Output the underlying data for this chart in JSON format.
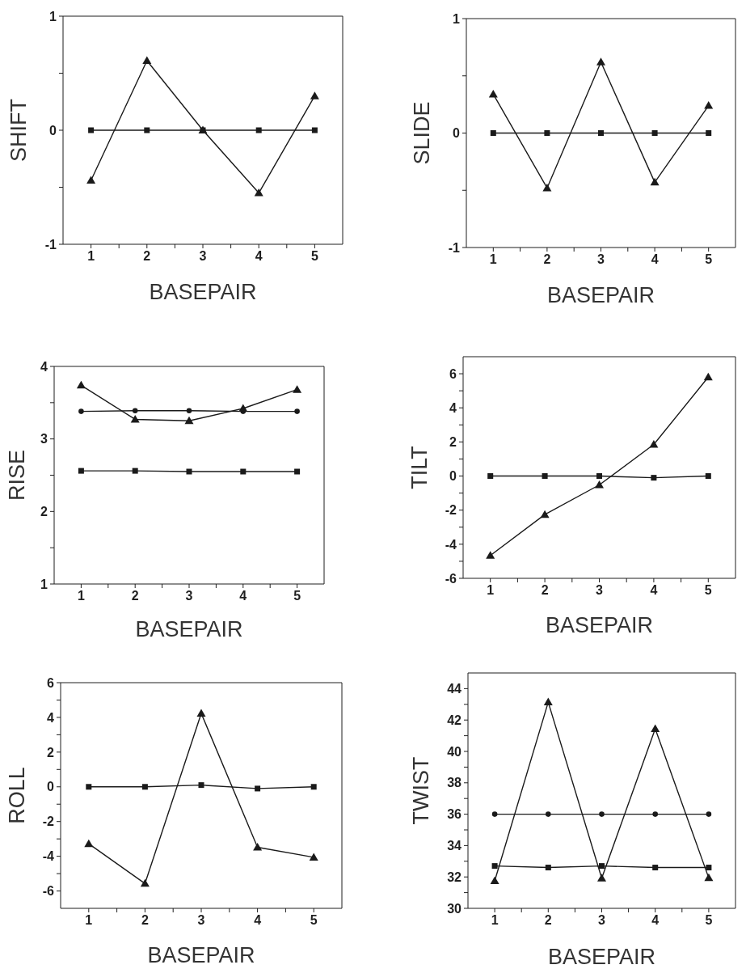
{
  "chart_data": [
    {
      "type": "line",
      "xlabel": "BASEPAIR",
      "ylabel": "SHIFT",
      "x": [
        1,
        2,
        3,
        4,
        5
      ],
      "xlim": [
        0.5,
        5.5
      ],
      "xticks": [
        1,
        {
          "value": 1.5,
          "label": null
        },
        2,
        {
          "value": 2.5,
          "label": null
        },
        3,
        {
          "value": 3.5,
          "label": null
        },
        4,
        {
          "value": 4.5,
          "label": null
        },
        5
      ],
      "ylim": [
        -1,
        1
      ],
      "yticks": [
        -1,
        {
          "value": -0.5,
          "label": null
        },
        0,
        {
          "value": 0.5,
          "label": null
        },
        1
      ],
      "series": [
        {
          "color": "#1a1a1a",
          "marker": "square",
          "values": [
            0,
            0,
            0,
            0,
            0
          ]
        },
        {
          "color": "#1a1a1a",
          "marker": "triangle",
          "values": [
            -0.44,
            0.61,
            0,
            -0.55,
            0.3
          ]
        }
      ]
    },
    {
      "type": "line",
      "xlabel": "BASEPAIR",
      "ylabel": "SLIDE",
      "x": [
        1,
        2,
        3,
        4,
        5
      ],
      "xlim": [
        0.5,
        5.5
      ],
      "xticks": [
        1,
        {
          "value": 1.5,
          "label": null
        },
        2,
        {
          "value": 2.5,
          "label": null
        },
        3,
        {
          "value": 3.5,
          "label": null
        },
        4,
        {
          "value": 4.5,
          "label": null
        },
        5
      ],
      "ylim": [
        -1,
        1
      ],
      "yticks": [
        -1,
        {
          "value": -0.5,
          "label": null
        },
        0,
        {
          "value": 0.5,
          "label": null
        },
        1
      ],
      "series": [
        {
          "color": "#1a1a1a",
          "marker": "square",
          "values": [
            0,
            0,
            0,
            0,
            0
          ]
        },
        {
          "color": "#1a1a1a",
          "marker": "triangle",
          "values": [
            0.34,
            -0.48,
            0.62,
            -0.43,
            0.24
          ]
        }
      ]
    },
    {
      "type": "line",
      "xlabel": "BASEPAIR",
      "ylabel": "RISE",
      "x": [
        1,
        2,
        3,
        4,
        5
      ],
      "xlim": [
        0.5,
        5.5
      ],
      "xticks": [
        1,
        {
          "value": 1.5,
          "label": null
        },
        2,
        {
          "value": 2.5,
          "label": null
        },
        3,
        {
          "value": 3.5,
          "label": null
        },
        4,
        {
          "value": 4.5,
          "label": null
        },
        5
      ],
      "ylim": [
        1,
        4
      ],
      "yticks": [
        1,
        {
          "value": 1.5,
          "label": null
        },
        2,
        {
          "value": 2.5,
          "label": null
        },
        3,
        {
          "value": 3.5,
          "label": null
        },
        4
      ],
      "series": [
        {
          "color": "#1a1a1a",
          "marker": "square",
          "values": [
            2.56,
            2.56,
            2.55,
            2.55,
            2.55
          ]
        },
        {
          "color": "#1a1a1a",
          "marker": "circle",
          "values": [
            3.38,
            3.39,
            3.39,
            3.38,
            3.38
          ]
        },
        {
          "color": "#1a1a1a",
          "marker": "triangle",
          "values": [
            3.74,
            3.27,
            3.25,
            3.42,
            3.68
          ]
        }
      ]
    },
    {
      "type": "line",
      "xlabel": "BASEPAIR",
      "ylabel": "TILT",
      "x": [
        1,
        2,
        3,
        4,
        5
      ],
      "xlim": [
        0.5,
        5.5
      ],
      "xticks": [
        1,
        {
          "value": 1.5,
          "label": null
        },
        2,
        {
          "value": 2.5,
          "label": null
        },
        3,
        {
          "value": 3.5,
          "label": null
        },
        4,
        {
          "value": 4.5,
          "label": null
        },
        5
      ],
      "ylim": [
        -6,
        7
      ],
      "yticks": [
        -6,
        {
          "value": -5,
          "label": null
        },
        -4,
        {
          "value": -3,
          "label": null
        },
        -2,
        {
          "value": -1,
          "label": null
        },
        0,
        {
          "value": 1,
          "label": null
        },
        2,
        {
          "value": 3,
          "label": null
        },
        4,
        {
          "value": 5,
          "label": null
        },
        6
      ],
      "series": [
        {
          "color": "#1a1a1a",
          "marker": "square",
          "values": [
            0,
            0,
            0,
            -0.1,
            0
          ]
        },
        {
          "color": "#1a1a1a",
          "marker": "triangle",
          "values": [
            -4.66,
            -2.26,
            -0.52,
            1.85,
            5.8
          ]
        }
      ]
    },
    {
      "type": "line",
      "xlabel": "BASEPAIR",
      "ylabel": "ROLL",
      "x": [
        1,
        2,
        3,
        4,
        5
      ],
      "xlim": [
        0.5,
        5.5
      ],
      "xticks": [
        1,
        {
          "value": 1.5,
          "label": null
        },
        2,
        {
          "value": 2.5,
          "label": null
        },
        3,
        {
          "value": 3.5,
          "label": null
        },
        4,
        {
          "value": 4.5,
          "label": null
        },
        5
      ],
      "ylim": [
        -7,
        6
      ],
      "yticks": [
        -6,
        {
          "value": -5,
          "label": null
        },
        -4,
        {
          "value": -3,
          "label": null
        },
        -2,
        {
          "value": -1,
          "label": null
        },
        0,
        {
          "value": 1,
          "label": null
        },
        2,
        {
          "value": 3,
          "label": null
        },
        4,
        {
          "value": 5,
          "label": null
        },
        6
      ],
      "series": [
        {
          "color": "#1a1a1a",
          "marker": "square",
          "values": [
            0,
            0,
            0.1,
            -0.1,
            0
          ]
        },
        {
          "color": "#1a1a1a",
          "marker": "triangle",
          "values": [
            -3.28,
            -5.57,
            4.23,
            -3.48,
            -4.06
          ]
        }
      ]
    },
    {
      "type": "line",
      "xlabel": "BASEPAIR",
      "ylabel": "TWIST",
      "x": [
        1,
        2,
        3,
        4,
        5
      ],
      "xlim": [
        0.5,
        5.5
      ],
      "xticks": [
        1,
        {
          "value": 1.5,
          "label": null
        },
        2,
        {
          "value": 2.5,
          "label": null
        },
        3,
        {
          "value": 3.5,
          "label": null
        },
        4,
        {
          "value": 4.5,
          "label": null
        },
        5
      ],
      "ylim": [
        30,
        45
      ],
      "yticks": [
        30,
        {
          "value": 31,
          "label": null
        },
        32,
        {
          "value": 33,
          "label": null
        },
        34,
        {
          "value": 35,
          "label": null
        },
        36,
        {
          "value": 37,
          "label": null
        },
        38,
        {
          "value": 39,
          "label": null
        },
        40,
        {
          "value": 41,
          "label": null
        },
        42,
        {
          "value": 43,
          "label": null
        },
        44
      ],
      "series": [
        {
          "color": "#1a1a1a",
          "marker": "square",
          "values": [
            32.7,
            32.6,
            32.7,
            32.6,
            32.6
          ]
        },
        {
          "color": "#1a1a1a",
          "marker": "circle",
          "values": [
            36,
            36,
            36,
            36,
            36
          ]
        },
        {
          "color": "#1a1a1a",
          "marker": "triangle",
          "values": [
            31.75,
            43.14,
            31.92,
            41.44,
            31.94
          ]
        }
      ]
    }
  ]
}
